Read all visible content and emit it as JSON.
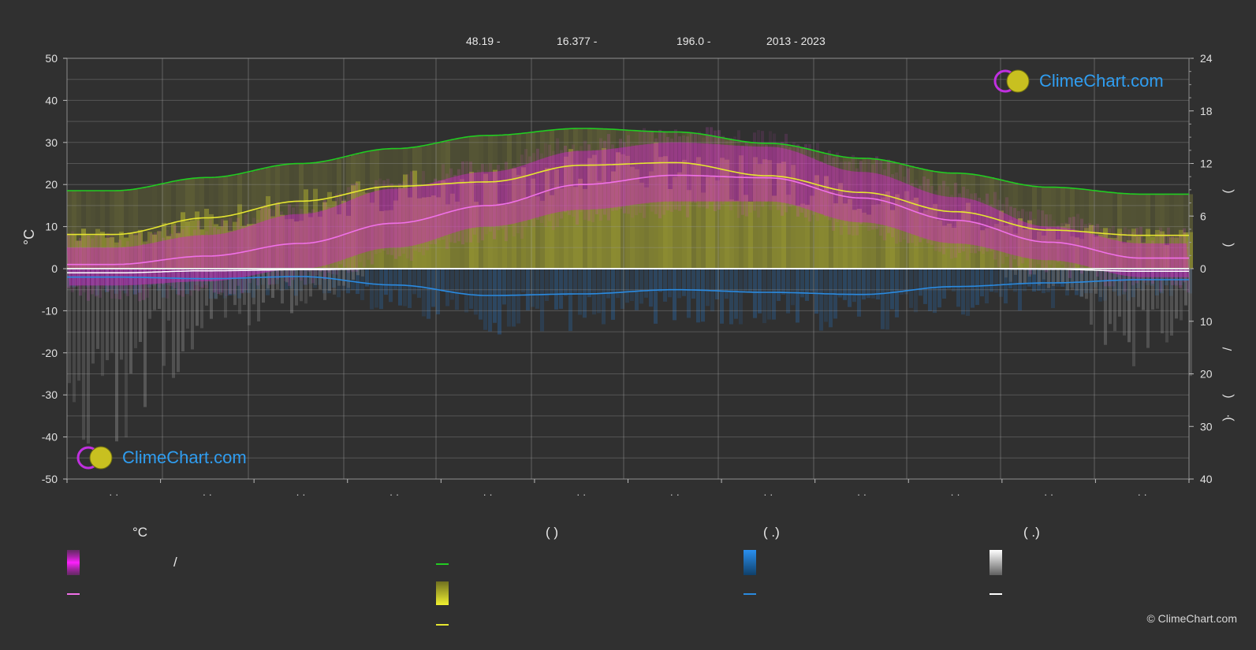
{
  "header": {
    "lat": "48.19 -",
    "lon": "16.377 -",
    "elev": "196.0 -",
    "years": "2013 - 2023"
  },
  "logo_text": "ClimeChart.com",
  "copyright": "© ClimeChart.com",
  "legend": {
    "temp_header": "°C",
    "sun_header": "(          )",
    "rain_header": "(   .)",
    "snow_header": "(   .)",
    "slash": "/"
  },
  "colors": {
    "background": "#303030",
    "daylight": "#22cc22",
    "sunshine": "#e6e630",
    "mean_temp": "#f070e8",
    "precip": "#2a8ae0",
    "snow": "#ffffff",
    "temp_range": "#d020c8"
  },
  "chart_data": {
    "type": "line",
    "x_count": 12,
    "left_axis": {
      "label": "°C",
      "ylim": [
        -50,
        50
      ],
      "ticks": [
        "50",
        "40",
        "30",
        "20",
        "10",
        "0",
        "-10",
        "-20",
        "-30",
        "-40",
        "-50"
      ]
    },
    "right_axis_top": {
      "ylim": [
        0,
        24
      ],
      "ticks": [
        "24",
        "18",
        "12",
        "6",
        "0"
      ]
    },
    "right_axis_bottom": {
      "ylim": [
        0,
        40
      ],
      "ticks": [
        "0",
        "10",
        "20",
        "30",
        "40"
      ]
    },
    "right_axis_glyphs": [
      "(",
      "(",
      "/",
      "(",
      "·",
      ")"
    ],
    "x_labels": [
      "· ·",
      "· ·",
      "· ·",
      "· ·",
      "· ·",
      "· ·",
      "· ·",
      "· ·",
      "· ·",
      "· ·",
      "· ·",
      "· ·"
    ],
    "series": [
      {
        "key": "daylight",
        "axis": "hours",
        "values": [
          8.9,
          10.4,
          12.0,
          13.7,
          15.2,
          16.0,
          15.6,
          14.3,
          12.6,
          10.9,
          9.3,
          8.5
        ]
      },
      {
        "key": "sunshine",
        "axis": "hours",
        "values": [
          3.9,
          5.8,
          7.7,
          9.4,
          9.9,
          11.8,
          12.1,
          10.6,
          8.7,
          6.5,
          4.4,
          3.8
        ]
      },
      {
        "key": "mean_temp",
        "axis": "celsius",
        "values": [
          1.0,
          3.0,
          6.0,
          10.8,
          15.0,
          20.0,
          22.2,
          21.6,
          16.8,
          11.5,
          6.3,
          2.5
        ]
      },
      {
        "key": "precip",
        "axis": "mm",
        "values": [
          1.6,
          1.9,
          1.5,
          3.1,
          5.1,
          4.8,
          4.0,
          4.5,
          4.9,
          3.4,
          2.7,
          2.1
        ]
      },
      {
        "key": "snow",
        "axis": "mm",
        "values": [
          0.8,
          0.4,
          0.2,
          0.0,
          0.0,
          0.0,
          0.0,
          0.0,
          0.0,
          0.0,
          0.1,
          0.5
        ]
      }
    ],
    "temp_range": {
      "max": [
        5,
        8,
        13,
        19,
        23,
        28,
        30,
        29,
        23,
        17,
        10,
        6
      ],
      "min": [
        -4,
        -3,
        0,
        5,
        10,
        14,
        16,
        16,
        11,
        6,
        2,
        -2
      ]
    }
  }
}
